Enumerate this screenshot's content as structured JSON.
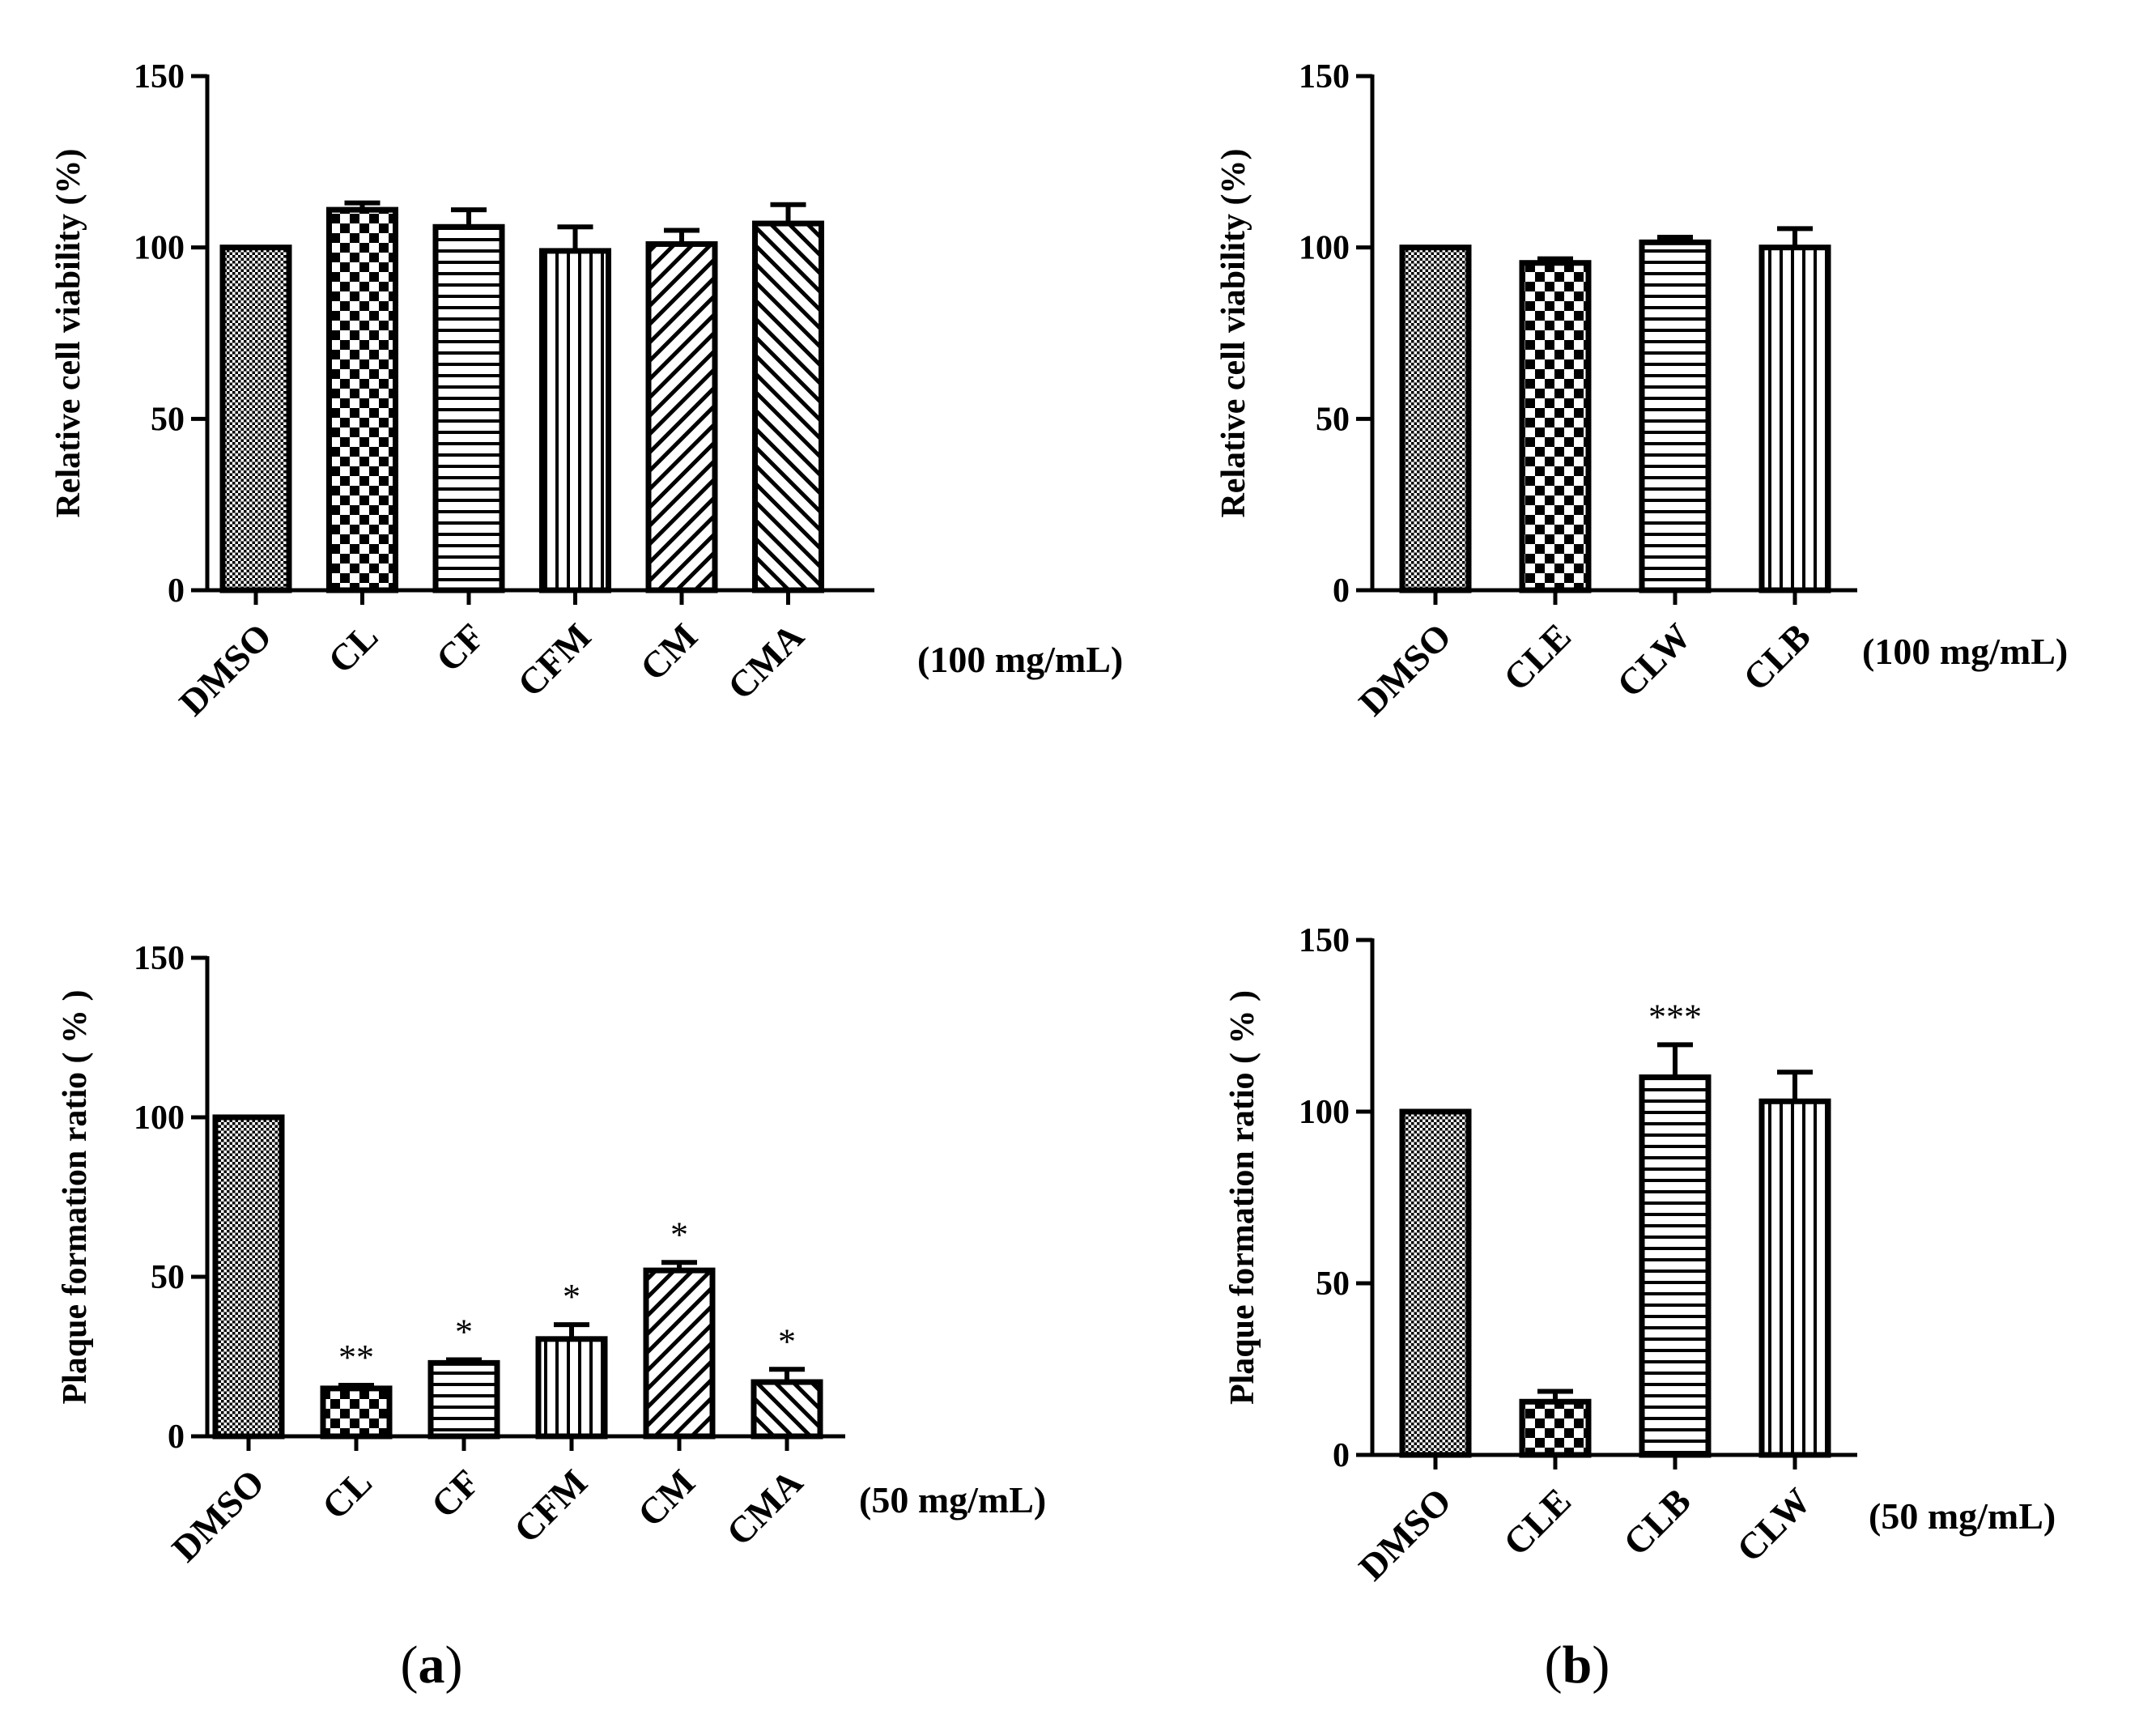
{
  "chart_data": [
    {
      "type": "bar",
      "id": "a-top",
      "ylabel": "Relative cell viability (%)",
      "ylim": [
        0,
        150
      ],
      "yticks": [
        "0",
        "50",
        "100",
        "150"
      ],
      "categories": [
        "DMSO",
        "CL",
        "CF",
        "CFM",
        "CM",
        "CMA"
      ],
      "values": [
        100,
        111,
        106,
        99,
        101,
        107
      ],
      "errors": [
        0,
        2,
        5,
        7,
        4,
        5.5
      ],
      "patterns": [
        "dots",
        "checker",
        "hlines",
        "vlines",
        "diag-up",
        "diag-down"
      ],
      "significance": [
        "",
        "",
        "",
        "",
        "",
        ""
      ],
      "concentration": "(100 mg/mL)"
    },
    {
      "type": "bar",
      "id": "b-top",
      "ylabel": "Relative cell viability (%)",
      "ylim": [
        0,
        150
      ],
      "yticks": [
        "0",
        "50",
        "100",
        "150"
      ],
      "categories": [
        "DMSO",
        "CLE",
        "CLW",
        "CLB"
      ],
      "values": [
        100,
        95.5,
        101.5,
        100
      ],
      "errors": [
        0,
        1.2,
        1.5,
        5.5
      ],
      "patterns": [
        "dots",
        "checker",
        "hlines",
        "vlines"
      ],
      "significance": [
        "",
        "",
        "",
        ""
      ],
      "concentration": "(100 mg/mL)"
    },
    {
      "type": "bar",
      "id": "a-bottom",
      "ylabel": "Plaque formation ratio ( % )",
      "ylim": [
        0,
        150
      ],
      "yticks": [
        "0",
        "50",
        "100",
        "150"
      ],
      "categories": [
        "DMSO",
        "CL",
        "CF",
        "CFM",
        "CM",
        "CMA"
      ],
      "values": [
        100,
        15,
        23,
        30.5,
        52,
        17
      ],
      "errors": [
        0,
        1,
        1,
        4.5,
        2.5,
        4
      ],
      "patterns": [
        "dots",
        "checker",
        "hlines",
        "vlines",
        "diag-up",
        "diag-down"
      ],
      "significance": [
        "",
        "**",
        "*",
        "*",
        "*",
        "*"
      ],
      "concentration": "(50 mg/mL)"
    },
    {
      "type": "bar",
      "id": "b-bottom",
      "ylabel": "Plaque formation ratio ( % )",
      "ylim": [
        0,
        150
      ],
      "yticks": [
        "0",
        "50",
        "100",
        "150"
      ],
      "categories": [
        "DMSO",
        "CLE",
        "CLB",
        "CLW"
      ],
      "values": [
        100,
        15.5,
        110,
        103
      ],
      "errors": [
        0,
        3,
        9.5,
        8.5
      ],
      "patterns": [
        "dots",
        "checker",
        "hlines",
        "vlines"
      ],
      "significance": [
        "",
        "",
        "***",
        ""
      ],
      "concentration": "(50 mg/mL)"
    }
  ],
  "panel_labels": {
    "a": {
      "open": "(",
      "letter": "a",
      "close": ")"
    },
    "b": {
      "open": "(",
      "letter": "b",
      "close": ")"
    }
  }
}
